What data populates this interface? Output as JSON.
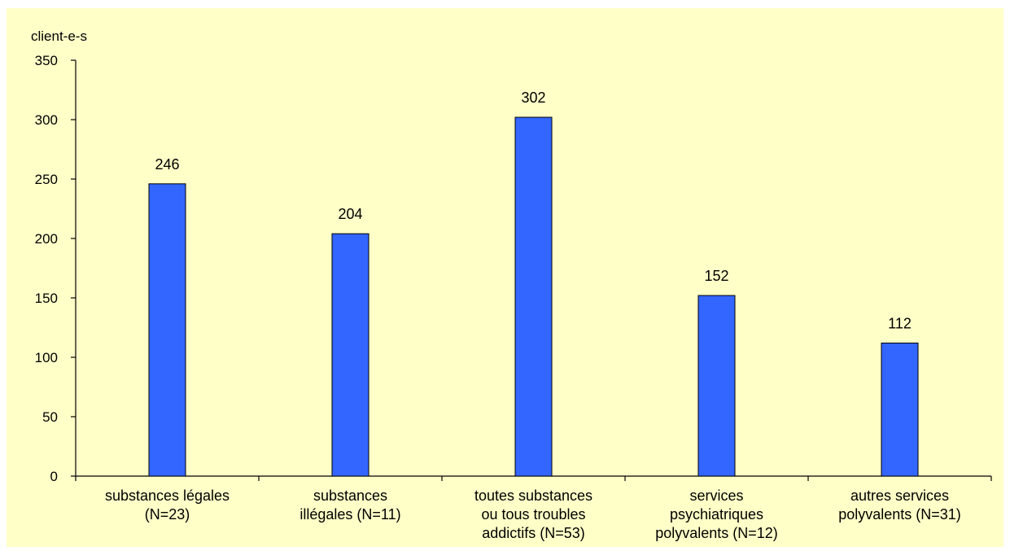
{
  "chart_data": {
    "type": "bar",
    "ylabel": "client-e-s",
    "ylim": [
      0,
      350
    ],
    "yticks": [
      0,
      50,
      100,
      150,
      200,
      250,
      300,
      350
    ],
    "grid": false,
    "legend": "none",
    "bar_color": "#3366ff",
    "background_color": "#ffffc8",
    "categories": [
      [
        "substances légales",
        "(N=23)"
      ],
      [
        "substances",
        "illégales (N=11)"
      ],
      [
        "toutes substances",
        "ou tous troubles",
        "addictifs (N=53)"
      ],
      [
        "services",
        "psychiatriques",
        "polyvalents (N=12)"
      ],
      [
        "autres services",
        "polyvalents (N=31)"
      ]
    ],
    "values": [
      246,
      204,
      302,
      152,
      112
    ]
  }
}
